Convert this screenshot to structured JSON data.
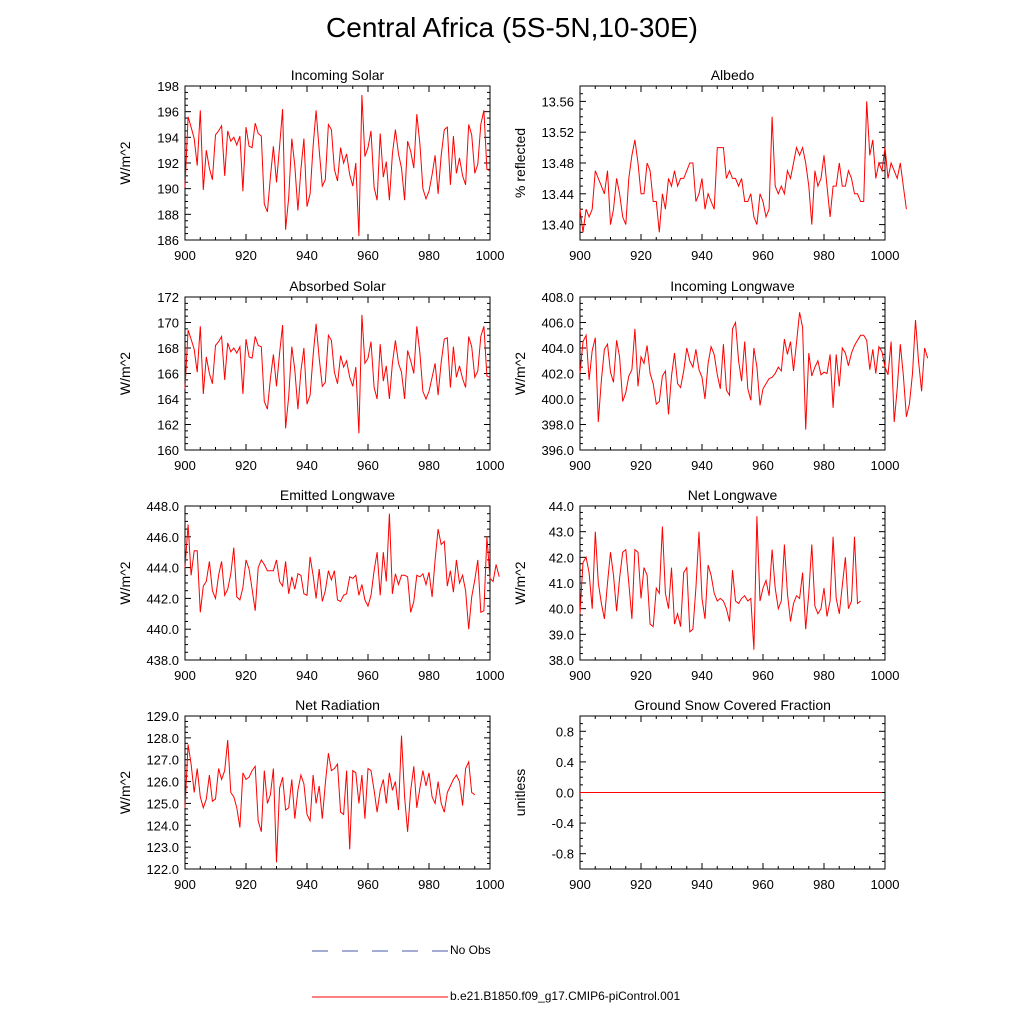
{
  "title": "Central Africa (5S-5N,10-30E)",
  "colors": {
    "series": "#ff0000",
    "obs": "#4a5aa8",
    "axis": "#000000"
  },
  "legend": {
    "obs_label": "No Obs",
    "model_label": "b.e21.B1850.f09_g17.CMIP6-piControl.001"
  },
  "chart_data": [
    {
      "type": "line",
      "title": "Incoming Solar",
      "ylabel": "W/m^2",
      "xlim": [
        900,
        1000
      ],
      "ylim": [
        186,
        198
      ],
      "xticks": [
        "900",
        "920",
        "940",
        "960",
        "980",
        "1000"
      ],
      "yticks": [
        "186",
        "188",
        "190",
        "192",
        "194",
        "196",
        "198"
      ],
      "x_start": 900,
      "values": [
        190.1,
        195.6,
        194.8,
        193.9,
        191.8,
        196.1,
        189.9,
        193.0,
        191.6,
        190.7,
        194.2,
        194.5,
        194.9,
        191.0,
        194.5,
        193.7,
        194.0,
        193.4,
        194.1,
        189.8,
        194.8,
        193.3,
        193.2,
        195.1,
        194.3,
        194.1,
        188.8,
        188.2,
        190.9,
        193.3,
        190.5,
        193.3,
        196.2,
        186.8,
        189.3,
        193.9,
        191.8,
        188.3,
        191.5,
        193.9,
        188.6,
        189.6,
        193.3,
        196.1,
        193.0,
        190.2,
        190.7,
        195.0,
        194.6,
        191.5,
        190.6,
        193.2,
        192.0,
        192.7,
        191.1,
        190.2,
        192.0,
        186.3,
        197.3,
        192.5,
        193.2,
        194.5,
        190.1,
        189.1,
        194.3,
        190.9,
        192.1,
        189.1,
        192.7,
        194.6,
        192.7,
        191.6,
        189.1,
        193.7,
        192.9,
        191.6,
        195.8,
        193.5,
        190.0,
        189.2,
        189.8,
        191.1,
        192.6,
        189.6,
        192.6,
        194.6,
        194.8,
        190.3,
        194.1,
        191.2,
        192.4,
        191.0,
        190.3,
        195.0,
        194.2,
        191.2,
        191.9,
        195.0,
        196.1,
        191.5,
        191.4
      ]
    },
    {
      "type": "line",
      "title": "Albedo",
      "ylabel": "% reflected",
      "xlim": [
        900,
        1000
      ],
      "ylim": [
        13.38,
        13.58
      ],
      "xticks": [
        "900",
        "920",
        "940",
        "960",
        "980",
        "1000"
      ],
      "yticks": [
        "13.40",
        "13.44",
        "13.48",
        "13.52",
        "13.56"
      ],
      "x_start": 900,
      "values": [
        13.42,
        13.39,
        13.42,
        13.41,
        13.42,
        13.47,
        13.46,
        13.45,
        13.44,
        13.47,
        13.4,
        13.42,
        13.46,
        13.44,
        13.41,
        13.4,
        13.46,
        13.49,
        13.51,
        13.48,
        13.44,
        13.44,
        13.48,
        13.47,
        13.43,
        13.43,
        13.39,
        13.44,
        13.42,
        13.46,
        13.45,
        13.47,
        13.45,
        13.46,
        13.46,
        13.47,
        13.48,
        13.48,
        13.43,
        13.44,
        13.46,
        13.42,
        13.44,
        13.43,
        13.42,
        13.5,
        13.5,
        13.5,
        13.46,
        13.47,
        13.46,
        13.46,
        13.45,
        13.46,
        13.43,
        13.43,
        13.44,
        13.41,
        13.4,
        13.44,
        13.43,
        13.41,
        13.42,
        13.54,
        13.45,
        13.44,
        13.45,
        13.44,
        13.47,
        13.46,
        13.48,
        13.5,
        13.49,
        13.5,
        13.48,
        13.45,
        13.4,
        13.47,
        13.45,
        13.46,
        13.49,
        13.45,
        13.41,
        13.45,
        13.45,
        13.48,
        13.45,
        13.45,
        13.47,
        13.46,
        13.44,
        13.44,
        13.43,
        13.43,
        13.56,
        13.49,
        13.51,
        13.46,
        13.48,
        13.47,
        13.5,
        13.46,
        13.48,
        13.47,
        13.46,
        13.48,
        13.45,
        13.42
      ]
    },
    {
      "type": "line",
      "title": "Absorbed Solar",
      "ylabel": "W/m^2",
      "xlim": [
        900,
        1000
      ],
      "ylim": [
        160,
        172
      ],
      "xticks": [
        "900",
        "920",
        "940",
        "960",
        "980",
        "1000"
      ],
      "yticks": [
        "160",
        "162",
        "164",
        "166",
        "168",
        "170",
        "172"
      ],
      "x_start": 900,
      "values": [
        164.8,
        169.4,
        168.7,
        167.9,
        166.1,
        169.7,
        164.4,
        167.3,
        166.0,
        165.2,
        168.2,
        168.5,
        168.9,
        165.5,
        168.4,
        167.7,
        168.0,
        167.6,
        168.1,
        164.4,
        168.7,
        167.3,
        167.2,
        168.9,
        168.2,
        168.1,
        163.8,
        163.2,
        165.6,
        167.5,
        165.0,
        167.6,
        169.8,
        161.7,
        164.2,
        168.1,
        166.3,
        163.2,
        166.2,
        168.0,
        163.6,
        164.3,
        167.4,
        169.9,
        167.2,
        165.0,
        165.3,
        169.0,
        168.6,
        166.1,
        165.2,
        167.4,
        166.5,
        167.0,
        165.7,
        165.0,
        166.5,
        161.3,
        170.6,
        166.8,
        167.2,
        168.5,
        164.9,
        164.0,
        168.3,
        165.4,
        166.6,
        164.0,
        166.8,
        168.6,
        166.8,
        166.1,
        164.0,
        167.8,
        167.0,
        166.0,
        169.7,
        167.6,
        164.6,
        164.0,
        164.6,
        165.7,
        166.8,
        164.3,
        166.9,
        168.7,
        168.8,
        164.9,
        168.1,
        165.7,
        166.6,
        165.6,
        164.9,
        168.9,
        168.1,
        165.7,
        166.2,
        168.9,
        169.7,
        165.8,
        165.7
      ]
    },
    {
      "type": "line",
      "title": "Incoming Longwave",
      "ylabel": "W/m^2",
      "xlim": [
        900,
        1000
      ],
      "ylim": [
        396,
        408
      ],
      "xticks": [
        "900",
        "920",
        "940",
        "960",
        "980",
        "1000"
      ],
      "yticks": [
        "396.0",
        "398.0",
        "400.0",
        "402.0",
        "404.0",
        "406.0",
        "408.0"
      ],
      "x_start": 900,
      "values": [
        402.0,
        404.5,
        405.0,
        401.5,
        403.8,
        404.8,
        398.2,
        401.5,
        403.9,
        404.3,
        402.1,
        401.3,
        404.6,
        403.3,
        399.8,
        400.5,
        401.8,
        402.3,
        405.5,
        401.0,
        403.3,
        402.8,
        404.2,
        402.0,
        401.2,
        399.6,
        399.8,
        401.8,
        402.2,
        398.8,
        401.8,
        403.6,
        401.2,
        400.9,
        402.2,
        404.0,
        403.0,
        402.5,
        403.9,
        402.3,
        401.7,
        400.0,
        402.8,
        404.1,
        403.5,
        401.9,
        400.8,
        404.3,
        400.7,
        400.3,
        405.5,
        406.0,
        403.0,
        401.4,
        404.5,
        400.8,
        399.9,
        404.0,
        402.5,
        399.5,
        400.8,
        401.2,
        401.6,
        401.7,
        402.0,
        402.5,
        402.2,
        404.7,
        403.5,
        404.5,
        402.2,
        404.4,
        406.8,
        405.6,
        397.6,
        403.6,
        401.8,
        402.5,
        403.0,
        401.9,
        402.1,
        402.0,
        403.5,
        399.3,
        403.5,
        401.0,
        404.0,
        403.6,
        402.6,
        403.6,
        404.2,
        404.6,
        405.0,
        405.0,
        404.6,
        402.3,
        403.9,
        402.0,
        404.1,
        403.7,
        402.5,
        401.9,
        404.5,
        398.2,
        400.8,
        404.3,
        401.9,
        398.6,
        399.6,
        402.0,
        406.2,
        403.0,
        400.6,
        404.0,
        403.2
      ]
    },
    {
      "type": "line",
      "title": "Emitted Longwave",
      "ylabel": "W/m^2",
      "xlim": [
        900,
        1000
      ],
      "ylim": [
        438,
        448
      ],
      "xticks": [
        "900",
        "920",
        "940",
        "960",
        "980",
        "1000"
      ],
      "yticks": [
        "438.0",
        "440.0",
        "442.0",
        "444.0",
        "446.0",
        "448.0"
      ],
      "x_start": 900,
      "values": [
        444.0,
        446.8,
        443.5,
        445.1,
        445.1,
        441.1,
        442.8,
        443.1,
        444.4,
        442.5,
        442.0,
        443.5,
        444.4,
        442.2,
        442.6,
        443.6,
        445.3,
        442.1,
        441.9,
        442.7,
        444.5,
        443.9,
        442.6,
        441.2,
        444.0,
        444.5,
        444.2,
        443.8,
        443.8,
        443.8,
        444.5,
        443.1,
        442.8,
        444.4,
        442.3,
        443.4,
        442.6,
        443.6,
        443.5,
        442.3,
        442.2,
        444.7,
        443.5,
        442.0,
        443.9,
        441.8,
        442.5,
        443.8,
        443.2,
        443.8,
        441.9,
        441.8,
        442.2,
        442.3,
        443.4,
        443.3,
        443.5,
        442.2,
        442.9,
        441.9,
        441.5,
        442.2,
        443.8,
        445.0,
        442.2,
        445.0,
        443.1,
        447.5,
        442.3,
        443.6,
        442.9,
        443.5,
        443.5,
        443.4,
        441.1,
        441.8,
        443.5,
        443.4,
        443.6,
        442.9,
        443.7,
        442.1,
        444.5,
        446.5,
        445.5,
        445.7,
        442.8,
        443.8,
        442.4,
        444.5,
        443.0,
        443.5,
        442.5,
        440.0,
        442.1,
        443.2,
        444.5,
        441.1,
        441.2,
        446.0,
        443.3,
        443.1,
        444.2,
        443.4
      ]
    },
    {
      "type": "line",
      "title": "Net Longwave",
      "ylabel": "W/m^2",
      "xlim": [
        900,
        1000
      ],
      "ylim": [
        38,
        44
      ],
      "xticks": [
        "900",
        "920",
        "940",
        "960",
        "980",
        "1000"
      ],
      "yticks": [
        "38.0",
        "39.0",
        "40.0",
        "41.0",
        "42.0",
        "43.0",
        "44.0"
      ],
      "x_start": 900,
      "values": [
        39.8,
        41.8,
        42.0,
        41.4,
        40.0,
        43.0,
        41.0,
        40.2,
        39.6,
        41.0,
        42.2,
        41.3,
        39.9,
        41.2,
        42.2,
        42.3,
        41.0,
        39.6,
        42.3,
        42.2,
        40.4,
        41.6,
        41.3,
        39.4,
        39.3,
        40.8,
        40.6,
        43.2,
        40.6,
        40.0,
        41.6,
        39.4,
        39.8,
        39.3,
        41.4,
        41.6,
        39.1,
        39.2,
        40.8,
        43.0,
        40.4,
        39.6,
        41.7,
        41.3,
        40.6,
        40.3,
        40.4,
        40.3,
        40.0,
        39.5,
        41.5,
        40.3,
        40.2,
        40.4,
        40.5,
        40.3,
        40.4,
        38.4,
        43.6,
        40.3,
        40.8,
        41.1,
        40.5,
        42.3,
        40.8,
        40.0,
        40.3,
        42.5,
        40.6,
        39.5,
        40.2,
        40.5,
        40.4,
        41.4,
        39.2,
        40.6,
        42.5,
        40.1,
        39.8,
        40.0,
        40.8,
        39.7,
        40.3,
        42.8,
        40.4,
        39.8,
        40.9,
        42.0,
        40.0,
        40.3,
        42.8,
        40.2,
        40.3
      ]
    },
    {
      "type": "line",
      "title": "Net Radiation",
      "ylabel": "W/m^2",
      "xlim": [
        900,
        1000
      ],
      "ylim": [
        122,
        129
      ],
      "xticks": [
        "900",
        "920",
        "940",
        "960",
        "980",
        "1000"
      ],
      "yticks": [
        "122.0",
        "123.0",
        "124.0",
        "125.0",
        "126.0",
        "127.0",
        "128.0",
        "129.0"
      ],
      "x_start": 900,
      "values": [
        124.8,
        127.7,
        126.8,
        125.5,
        126.6,
        125.3,
        124.8,
        125.2,
        126.3,
        125.1,
        125.2,
        126.6,
        126.1,
        126.5,
        127.9,
        125.5,
        125.3,
        124.8,
        123.9,
        126.4,
        126.1,
        126.2,
        126.5,
        126.7,
        124.2,
        123.7,
        126.5,
        125.0,
        125.4,
        126.6,
        122.3,
        125.7,
        126.2,
        124.7,
        124.8,
        126.1,
        124.3,
        125.6,
        126.3,
        125.9,
        124.5,
        124.2,
        126.3,
        125.0,
        125.8,
        124.3,
        125.9,
        127.3,
        126.5,
        126.6,
        126.8,
        124.6,
        124.5,
        126.5,
        122.9,
        126.5,
        126.4,
        125.0,
        126.3,
        124.3,
        126.6,
        126.5,
        125.6,
        124.6,
        125.6,
        126.1,
        125.0,
        126.4,
        125.6,
        126.0,
        124.7,
        128.1,
        125.3,
        123.7,
        125.6,
        126.7,
        124.8,
        125.7,
        126.5,
        125.8,
        126.4,
        125.3,
        125.0,
        126.0,
        125.0,
        124.6,
        125.5,
        125.8,
        126.1,
        126.3,
        126.0,
        124.9,
        126.6,
        126.9,
        125.5,
        125.4
      ]
    },
    {
      "type": "line",
      "title": "Ground Snow Covered Fraction",
      "ylabel": "unitless",
      "xlim": [
        900,
        1000
      ],
      "ylim": [
        -1.0,
        1.0
      ],
      "xticks": [
        "900",
        "920",
        "940",
        "960",
        "980",
        "1000"
      ],
      "yticks": [
        "-0.8",
        "-0.4",
        "0.0",
        "0.4",
        "0.8"
      ],
      "x_start": 900,
      "x_end": 999,
      "values": [
        0.0,
        0.0
      ]
    }
  ]
}
